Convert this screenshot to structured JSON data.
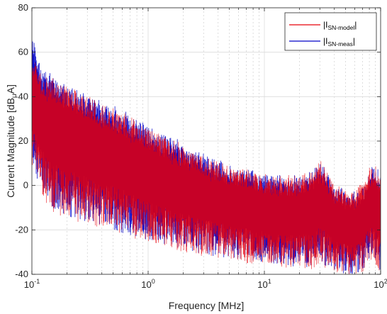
{
  "chart_data": {
    "type": "line",
    "title": "",
    "xlabel": "Frequency [MHz]",
    "ylabel_main": "Current Magnitude [dB",
    "ylabel_unit_sub": "μ",
    "ylabel_tail": "A]",
    "xscale": "log",
    "xlim": [
      0.1,
      100
    ],
    "ylim": [
      -40,
      80
    ],
    "grid": true,
    "legend_position": "top-right",
    "x_ticks": [
      {
        "value": 0.1,
        "base": "10",
        "exp": "-1"
      },
      {
        "value": 1,
        "base": "10",
        "exp": "0"
      },
      {
        "value": 10,
        "base": "10",
        "exp": "1"
      },
      {
        "value": 100,
        "base": "10",
        "exp": "2"
      }
    ],
    "y_ticks": [
      -40,
      -20,
      0,
      20,
      40,
      60,
      80
    ],
    "y_tick_labels": [
      "-40",
      "-20",
      "0",
      "20",
      "40",
      "60",
      "80"
    ],
    "series": [
      {
        "legend_main": "|I",
        "legend_sub": "SN-model",
        "legend_tail": "|",
        "color": "#e8000b",
        "envelope_x": [
          0.1,
          0.12,
          0.15,
          0.2,
          0.3,
          0.5,
          0.7,
          1,
          1.5,
          2,
          3,
          5,
          7,
          10,
          15,
          20,
          25,
          30,
          35,
          40,
          50,
          60,
          70,
          80,
          90,
          100
        ],
        "envelope_upper": [
          60,
          52,
          49,
          47,
          42,
          36,
          32,
          27,
          22,
          19,
          14,
          10,
          8,
          6,
          5,
          5,
          8,
          13,
          8,
          1,
          -1,
          -2,
          2,
          9,
          10,
          5
        ],
        "envelope_lower": [
          8,
          -5,
          -12,
          -15,
          -18,
          -20,
          -24,
          -25,
          -28,
          -30,
          -32,
          -33,
          -35,
          -36,
          -37,
          -38,
          -38,
          -35,
          -38,
          -39,
          -40,
          -40,
          -39,
          -34,
          -35,
          -40
        ]
      },
      {
        "legend_main": "|I",
        "legend_sub": "SN-meas",
        "legend_tail": "|",
        "color": "#0000c8",
        "envelope_x": [
          0.1,
          0.12,
          0.15,
          0.2,
          0.3,
          0.5,
          0.7,
          1,
          1.5,
          2,
          3,
          5,
          7,
          10,
          15,
          20,
          25,
          30,
          35,
          40,
          50,
          60,
          70,
          80,
          90,
          100
        ],
        "envelope_upper": [
          72,
          54,
          50,
          47,
          43,
          37,
          33,
          28,
          23,
          20,
          15,
          10,
          8,
          6,
          5,
          5,
          7,
          12,
          7,
          0,
          -1,
          -2,
          1,
          8,
          11,
          5
        ],
        "envelope_lower": [
          10,
          -3,
          -10,
          -14,
          -17,
          -20,
          -23,
          -25,
          -27,
          -29,
          -31,
          -33,
          -34,
          -35,
          -36,
          -37,
          -37,
          -34,
          -37,
          -38,
          -40,
          -40,
          -38,
          -33,
          -34,
          -40
        ]
      }
    ]
  }
}
